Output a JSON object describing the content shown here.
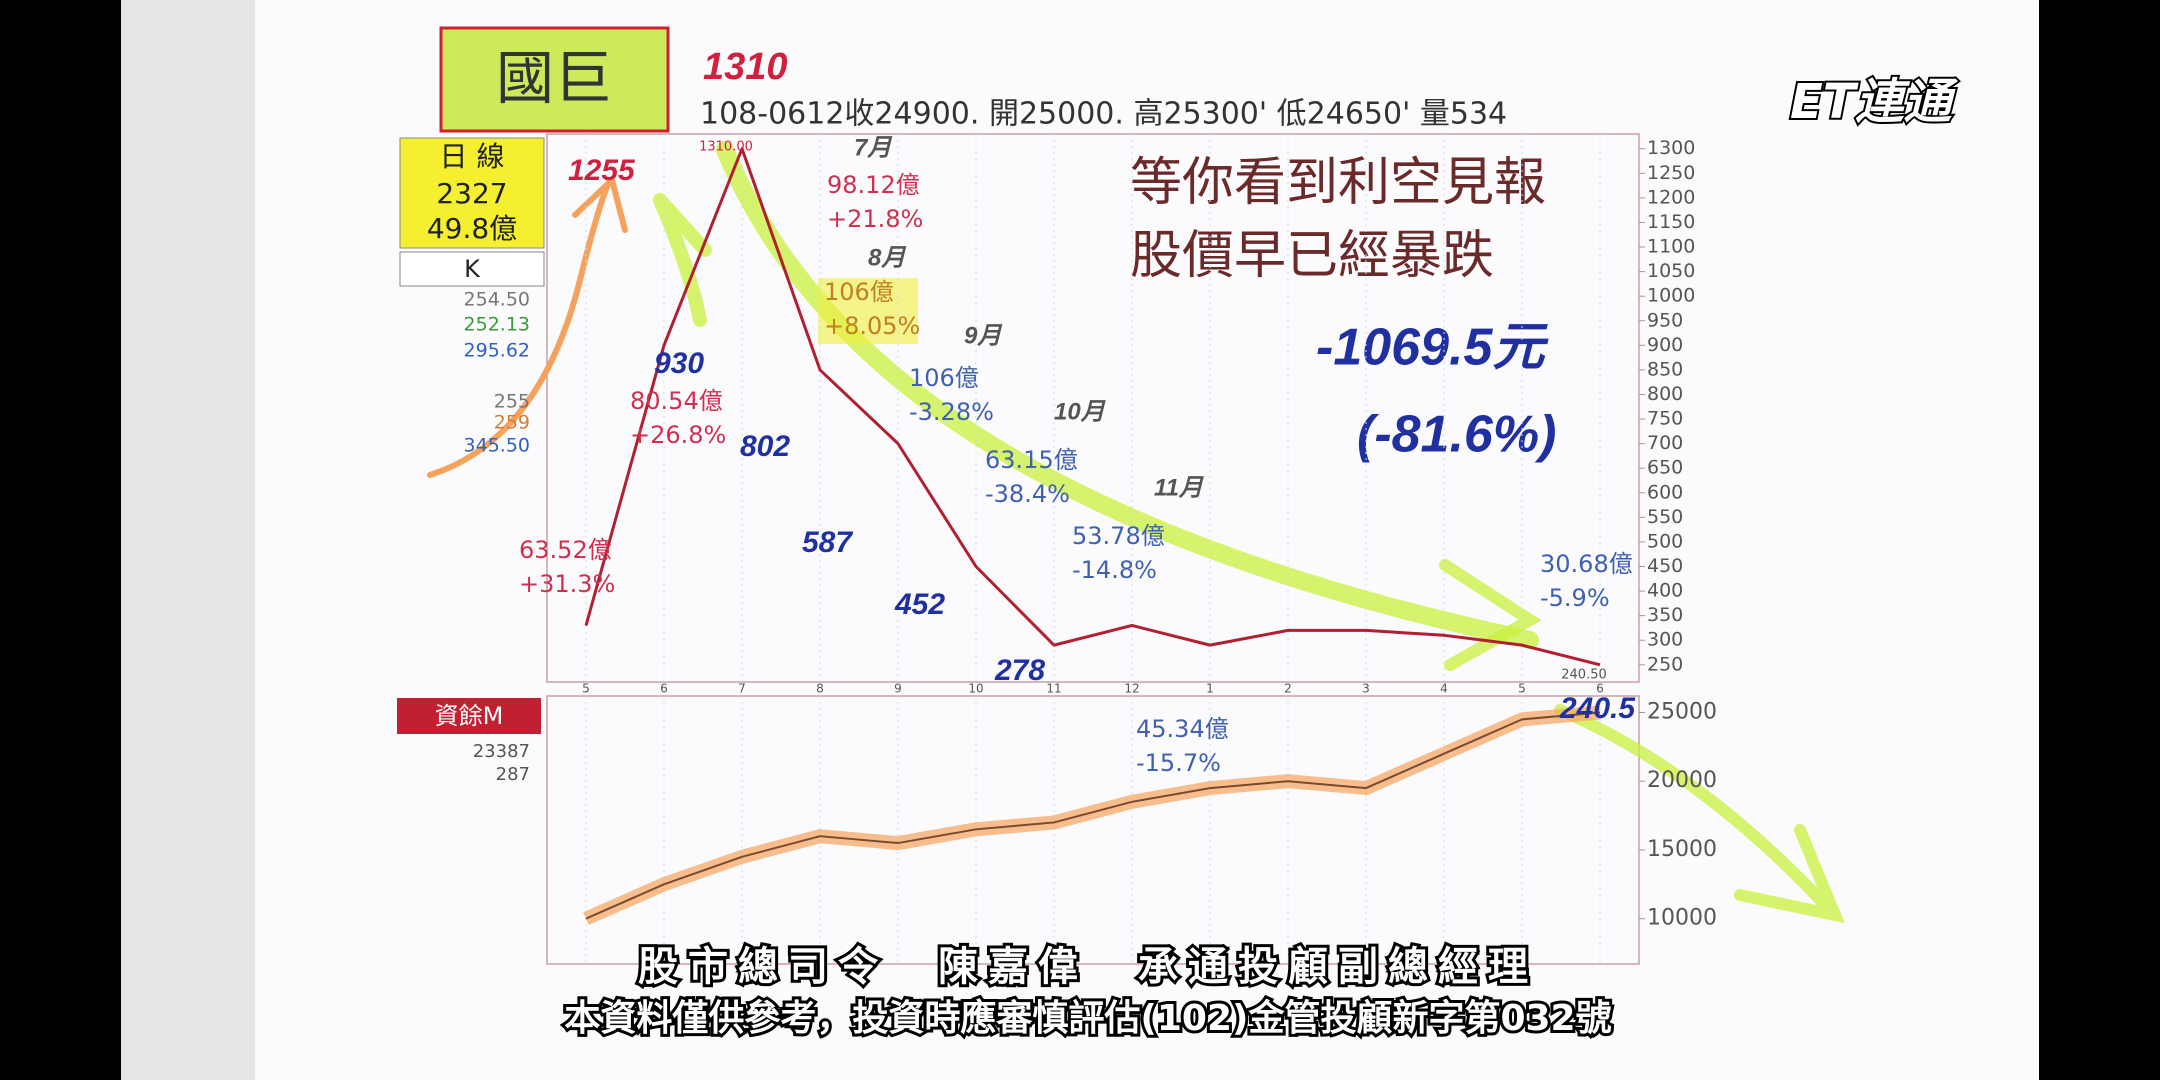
{
  "header": {
    "stock_name": "國巨",
    "code_note": "1310",
    "quote": "108-0612收24900. 開25000. 高25300' 低24650' 量534",
    "logo": "ET連通"
  },
  "left_panel": {
    "period": "日 線",
    "volume": "2327",
    "amount": "49.8億",
    "indicator": "K",
    "ma_values": [
      {
        "text": "254.50",
        "color": "#777777"
      },
      {
        "text": "252.13",
        "color": "#3a9a3a"
      },
      {
        "text": "295.62",
        "color": "#3060c0"
      },
      {
        "text": "255",
        "color": "#777777"
      },
      {
        "text": "259",
        "color": "#d08030"
      },
      {
        "text": "345.50",
        "color": "#3060c0"
      }
    ],
    "lower_label": "資餘M",
    "lower_values": [
      "23387",
      "287"
    ]
  },
  "headline": [
    "等你看到利空見報",
    "股價早已經暴跌"
  ],
  "handwritten": {
    "drop": "-1069.5元",
    "drop_pct": "(-81.6%)",
    "points": [
      {
        "text": "1255",
        "color": "#d02040"
      },
      {
        "text": "930",
        "color": "#2030a0"
      },
      {
        "text": "802",
        "color": "#2030a0"
      },
      {
        "text": "587",
        "color": "#2030a0"
      },
      {
        "text": "452",
        "color": "#2030a0"
      },
      {
        "text": "278",
        "color": "#2030a0"
      },
      {
        "text": "240.5",
        "color": "#2030a0"
      }
    ],
    "months": [
      "7月",
      "8月",
      "9月",
      "10月",
      "11月"
    ]
  },
  "printed_marks": {
    "high": "1310.00",
    "low": "240.50"
  },
  "annotations": [
    {
      "amount": "98.12億",
      "change": "+21.8%",
      "color": "#d03050"
    },
    {
      "amount": "106億",
      "change": "+8.05%",
      "color": "#c08020"
    },
    {
      "amount": "106億",
      "change": "-3.28%",
      "color": "#4060b0"
    },
    {
      "amount": "63.15億",
      "change": "-38.4%",
      "color": "#4060b0"
    },
    {
      "amount": "53.78億",
      "change": "-14.8%",
      "color": "#4060b0"
    },
    {
      "amount": "30.68億",
      "change": "-5.9%",
      "color": "#4060b0"
    },
    {
      "amount": "80.54億",
      "change": "+26.8%",
      "color": "#d03050"
    },
    {
      "amount": "63.52億",
      "change": "+31.3%",
      "color": "#d03050"
    },
    {
      "amount": "45.34億",
      "change": "-15.7%",
      "color": "#4060b0"
    }
  ],
  "chart_data": [
    {
      "type": "line",
      "categories": [
        "5",
        "6",
        "7",
        "8",
        "9",
        "10",
        "11",
        "12",
        "1",
        "2",
        "3",
        "4",
        "5",
        "6"
      ],
      "series": [
        {
          "name": "國巨",
          "color": "#b02030",
          "values": [
            330,
            900,
            1300,
            850,
            700,
            450,
            290,
            330,
            290,
            320,
            320,
            310,
            290,
            250
          ]
        }
      ],
      "ylim": [
        215,
        1330
      ],
      "yticks": [
        250,
        300,
        350,
        400,
        450,
        500,
        550,
        600,
        650,
        700,
        750,
        800,
        850,
        900,
        950,
        1000,
        1050,
        1100,
        1150,
        1200,
        1250,
        1300
      ]
    },
    {
      "type": "line",
      "categories": [
        "5",
        "6",
        "7",
        "8",
        "9",
        "10",
        "11",
        "12",
        "1",
        "2",
        "3",
        "4",
        "5",
        "6"
      ],
      "series": [
        {
          "name": "資餘M",
          "color": "#f5a25d",
          "values": [
            10000,
            12500,
            14500,
            16000,
            15500,
            16500,
            17000,
            18500,
            19500,
            20000,
            19500,
            22000,
            24500,
            25000
          ]
        }
      ],
      "ylim": [
        6700,
        26200
      ],
      "yticks": [
        10000,
        15000,
        20000,
        25000
      ]
    }
  ],
  "subtitles": [
    "股市總司令　陳嘉偉　承通投顧副總經理",
    "本資料僅供參考，投資時應審慎評估(102)金管投顧新字第032號"
  ]
}
